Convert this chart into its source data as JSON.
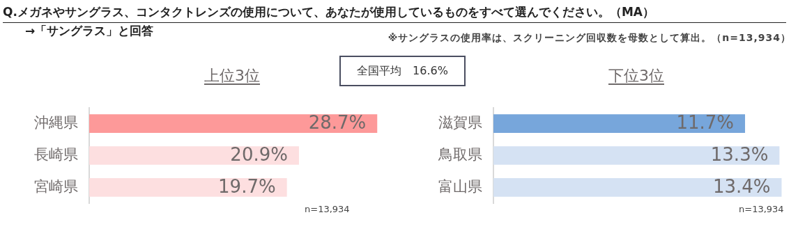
{
  "chart_data": [
    {
      "type": "bar",
      "orientation": "horizontal",
      "title": "上位3位",
      "categories": [
        "沖縄県",
        "長崎県",
        "宮崎県"
      ],
      "values": [
        28.7,
        20.9,
        19.7
      ],
      "value_labels": [
        "28.7%",
        "20.9%",
        "19.7%"
      ],
      "colors": [
        "#fd9999",
        "#fddfe0",
        "#fddfe0"
      ],
      "tick_labels": "y",
      "legend": false,
      "annotations": [
        "Q.メガネやサングラス、コンタクトレンズの使用について、あなたが使用しているものをすべて選んでください。（MA）",
        "→「サングラス」と回答",
        "※サングラスの使用率は、スクリーニング回収数を母数として算出。（n=13,934）",
        "全国平均　16.6%",
        "n=13,934"
      ]
    },
    {
      "type": "bar",
      "orientation": "horizontal",
      "title": "下位3位",
      "categories": [
        "滋賀県",
        "鳥取県",
        "富山県"
      ],
      "values": [
        11.7,
        13.3,
        13.4
      ],
      "value_labels": [
        "11.7%",
        "13.3%",
        "13.4%"
      ],
      "colors": [
        "#77a6db",
        "#d5e2f3",
        "#d5e2f3"
      ],
      "tick_labels": "y",
      "legend": false,
      "annotations": [
        "n=13,934"
      ]
    }
  ]
}
